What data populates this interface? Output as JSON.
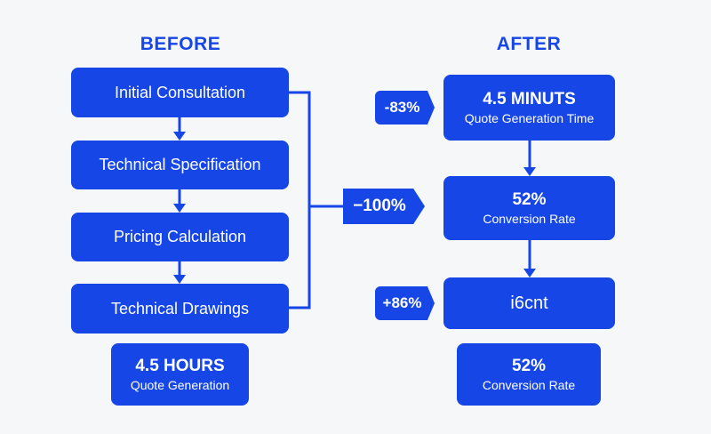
{
  "before": {
    "heading": "BEFORE",
    "steps": [
      "Initial Consultation",
      "Technical Specification",
      "Pricing Calculation",
      "Technical Drawings"
    ],
    "result": {
      "value": "4.5 HOURS",
      "label": "Quote Generation"
    }
  },
  "after": {
    "heading": "AFTER",
    "steps": [
      {
        "value": "4.5 MINUTS",
        "label": "Quote Generation Time"
      },
      {
        "value": "52%",
        "label": "Conversion Rate"
      },
      {
        "value": "i6cnt",
        "label": ""
      }
    ],
    "result": {
      "value": "52%",
      "label": "Conversion Rate"
    }
  },
  "badges": {
    "center": "−100%",
    "top": "-83%",
    "bottom": "+86%"
  },
  "colors": {
    "accent": "#1646e6",
    "background": "#f6f7f9"
  }
}
